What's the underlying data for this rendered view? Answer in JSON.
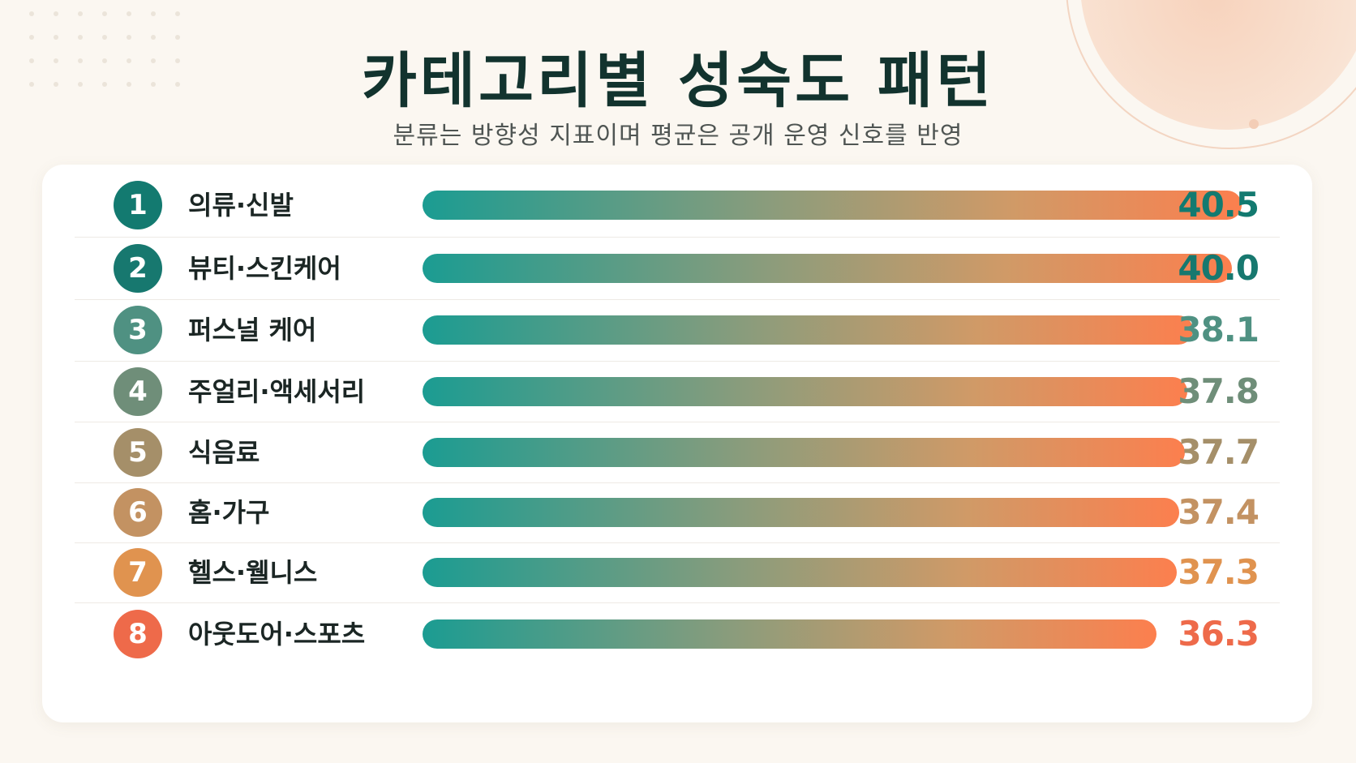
{
  "chart_data": {
    "type": "bar",
    "orientation": "horizontal",
    "title": "카테고리별 성숙도 패턴",
    "subtitle": "분류는 방향성 지표이며 평균은 공개 운영 신호를 반영",
    "xlim": [
      0,
      40.5
    ],
    "grid": false,
    "legend": "none",
    "bars": [
      {
        "rank": "1",
        "category": "의류·신발",
        "value": 40.5,
        "display": "40.5",
        "color": "#137a70"
      },
      {
        "rank": "2",
        "category": "뷰티·스킨케어",
        "value": 40.0,
        "display": "40.0",
        "color": "#17786f"
      },
      {
        "rank": "3",
        "category": "퍼스널 케어",
        "value": 38.1,
        "display": "38.1",
        "color": "#4f9182"
      },
      {
        "rank": "4",
        "category": "주얼리·액세서리",
        "value": 37.8,
        "display": "37.8",
        "color": "#6f8e79"
      },
      {
        "rank": "5",
        "category": "식음료",
        "value": 37.7,
        "display": "37.7",
        "color": "#a58f69"
      },
      {
        "rank": "6",
        "category": "홈·가구",
        "value": 37.4,
        "display": "37.4",
        "color": "#c39262"
      },
      {
        "rank": "7",
        "category": "헬스·웰니스",
        "value": 37.3,
        "display": "37.3",
        "color": "#e0934f"
      },
      {
        "rank": "8",
        "category": "아웃도어·스포츠",
        "value": 36.3,
        "display": "36.3",
        "color": "#ee6a4a"
      }
    ]
  }
}
